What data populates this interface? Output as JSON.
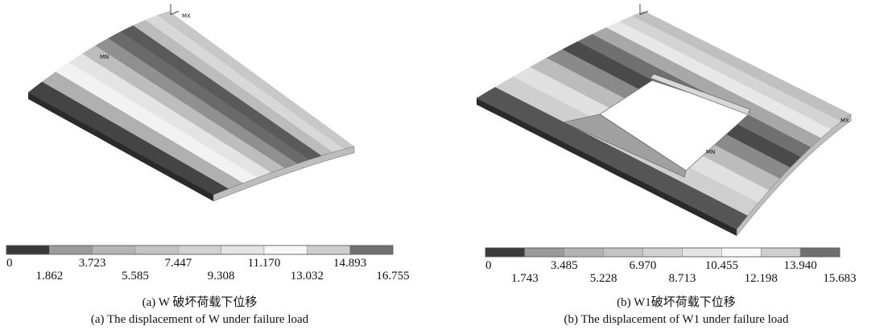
{
  "panels": [
    {
      "markers": {
        "min": "MN",
        "max": "MX"
      },
      "legend": {
        "labels": [
          "0",
          "1.862",
          "3.723",
          "5.585",
          "7.447",
          "9.308",
          "11.170",
          "13.032",
          "14.893",
          "16.755"
        ]
      },
      "caption_zh": "(a) W 破坏荷载下位移",
      "caption_en": "(a) The displacement of W under failure load"
    },
    {
      "markers": {
        "min": "MN",
        "max": "MX"
      },
      "legend": {
        "labels": [
          "0",
          "1.743",
          "3.485",
          "5.228",
          "6.970",
          "8.713",
          "10.455",
          "12.198",
          "13.940",
          "15.683"
        ]
      },
      "caption_zh": "(b) W1破坏荷载下位移",
      "caption_en": "(b) The displacement of W1 under failure load"
    }
  ]
}
